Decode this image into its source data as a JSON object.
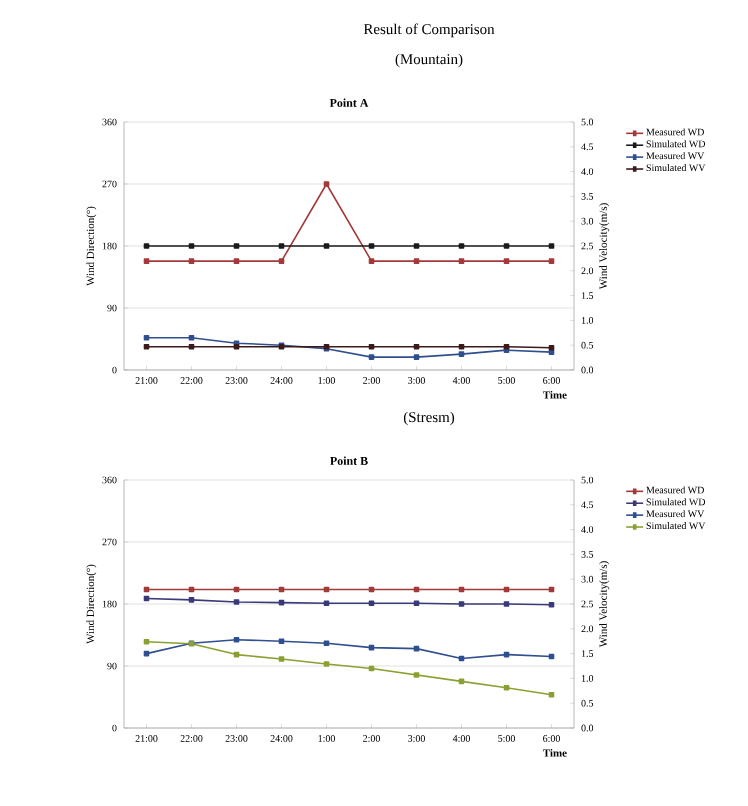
{
  "chart_data": [
    {
      "type": "line",
      "title": "Point A",
      "annotations": [
        "Result of Comparison",
        "(Mountain)"
      ],
      "xlabel": "Time",
      "ylabel": "Wind Direction(°)",
      "y2label": "Wind Velocity(m/s)",
      "categories": [
        "21:00",
        "22:00",
        "23:00",
        "24:00",
        "1:00",
        "2:00",
        "3:00",
        "4:00",
        "5:00",
        "6:00"
      ],
      "series": [
        {
          "name": "Measured WD",
          "color": "#a33a3a",
          "values": [
            158,
            158,
            158,
            158,
            270,
            158,
            158,
            158,
            158,
            158
          ]
        },
        {
          "name": "Simulated WD",
          "color": "#1a1a1a",
          "values": [
            180,
            180,
            180,
            180,
            180,
            180,
            180,
            180,
            180,
            180
          ]
        },
        {
          "name": "Measured WV",
          "color": "#2f4f8f",
          "axis": "y2",
          "values": [
            0.65,
            0.65,
            0.54,
            0.5,
            0.43,
            0.26,
            0.26,
            0.32,
            0.4,
            0.36
          ]
        },
        {
          "name": "Simulated WV",
          "color": "#3a1a1a",
          "axis": "y2",
          "values": [
            0.47,
            0.47,
            0.47,
            0.47,
            0.47,
            0.47,
            0.47,
            0.47,
            0.47,
            0.45
          ]
        }
      ],
      "ylim": [
        0,
        360
      ],
      "yticks": [
        0,
        90,
        180,
        270,
        360
      ],
      "y2lim": [
        0,
        5
      ],
      "y2ticks": [
        {
          "value": 0,
          "label": "0.0"
        },
        {
          "value": 0.5,
          "label": "0.5"
        },
        {
          "value": 1,
          "label": "1.0"
        },
        {
          "value": 1.5,
          "label": "1.5"
        },
        {
          "value": 2,
          "label": "2.0"
        },
        {
          "value": 2.5,
          "label": "2.5"
        },
        {
          "value": 3,
          "label": "3.0"
        },
        {
          "value": 3.5,
          "label": "3.5"
        },
        {
          "value": 4,
          "label": "4.0"
        },
        {
          "value": 4.5,
          "label": "4.5"
        },
        {
          "value": 5,
          "label": "5.0"
        }
      ],
      "grid": "y",
      "legend": "right",
      "marker": "square",
      "line_style": "solid"
    },
    {
      "type": "line",
      "title": "Point B",
      "annotations": [
        "(Stresm)"
      ],
      "xlabel": "Time",
      "ylabel": "Wind Direction(°)",
      "y2label": "Wind Velocity(m/s)",
      "categories": [
        "21:00",
        "22:00",
        "23:00",
        "24:00",
        "1:00",
        "2:00",
        "3:00",
        "4:00",
        "5:00",
        "6:00"
      ],
      "series": [
        {
          "name": "Measured WD",
          "color": "#a33a3a",
          "values": [
            201,
            201,
            201,
            201,
            201,
            201,
            201,
            201,
            201,
            201
          ]
        },
        {
          "name": "Simulated WD",
          "color": "#3a3a7a",
          "values": [
            188,
            186,
            183,
            182,
            181,
            181,
            181,
            180,
            180,
            179
          ]
        },
        {
          "name": "Measured WV",
          "color": "#2f4f8f",
          "axis": "y2",
          "values": [
            1.5,
            1.71,
            1.78,
            1.75,
            1.71,
            1.62,
            1.6,
            1.4,
            1.48,
            1.44
          ]
        },
        {
          "name": "Simulated WV",
          "color": "#8aa033",
          "axis": "y2",
          "values": [
            1.74,
            1.7,
            1.48,
            1.39,
            1.29,
            1.2,
            1.07,
            0.94,
            0.81,
            0.67
          ]
        }
      ],
      "ylim": [
        0,
        360
      ],
      "yticks": [
        0,
        90,
        180,
        270,
        360
      ],
      "y2lim": [
        0,
        5
      ],
      "y2ticks": [
        {
          "value": 0,
          "label": "0.0"
        },
        {
          "value": 0.5,
          "label": "0.5"
        },
        {
          "value": 1,
          "label": "1.0"
        },
        {
          "value": 1.5,
          "label": "1.5"
        },
        {
          "value": 2,
          "label": "2.0"
        },
        {
          "value": 2.5,
          "label": "2.5"
        },
        {
          "value": 3,
          "label": "3.0"
        },
        {
          "value": 3.5,
          "label": "3.5"
        },
        {
          "value": 4,
          "label": "4.0"
        },
        {
          "value": 4.5,
          "label": "4.5"
        },
        {
          "value": 5,
          "label": "5.0"
        }
      ],
      "grid": "y",
      "legend": "right",
      "marker": "square",
      "line_style": "solid"
    }
  ]
}
